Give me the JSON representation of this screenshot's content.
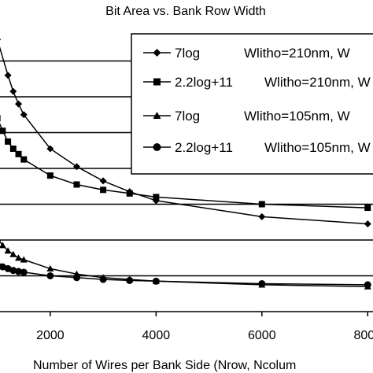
{
  "chart_data": {
    "type": "line",
    "title": "Bit Area vs. Bank Row Width",
    "xlabel": "Number of Wires per Bank Side (Nrow, Ncolum",
    "ylabel": "",
    "xlim": [
      1050,
      8100
    ],
    "ylim": [
      0,
      8
    ],
    "x_ticks": [
      2000,
      4000,
      6000,
      8000
    ],
    "x_tick_labels": [
      "2000",
      "4000",
      "6000",
      "8000"
    ],
    "y_gridlines": [
      1,
      2,
      3,
      4,
      5,
      6,
      7
    ],
    "y_grid": true,
    "x_grid": false,
    "legend_position": "top-right",
    "series": [
      {
        "name": "7log",
        "wlitho": "Wlitho=210nm, W",
        "marker": "diamond",
        "color": "#000000",
        "x": [
          1000,
          1200,
          1300,
          1400,
          1500,
          2000,
          2500,
          3000,
          3500,
          4000,
          6000,
          8000
        ],
        "y": [
          7.6,
          6.6,
          6.15,
          5.8,
          5.5,
          4.55,
          4.05,
          3.65,
          3.35,
          3.1,
          2.65,
          2.45
        ]
      },
      {
        "name": "2.2log+11",
        "wlitho": "Wlitho=210nm, W",
        "marker": "square",
        "color": "#000000",
        "x": [
          1000,
          1100,
          1200,
          1300,
          1400,
          1500,
          2000,
          2500,
          3000,
          3500,
          4000,
          6000,
          8000
        ],
        "y": [
          5.4,
          5.05,
          4.75,
          4.55,
          4.4,
          4.25,
          3.8,
          3.55,
          3.4,
          3.3,
          3.2,
          3.0,
          2.9
        ]
      },
      {
        "name": "7log",
        "wlitho": "Wlitho=105nm, W",
        "marker": "triangle",
        "color": "#000000",
        "x": [
          1000,
          1100,
          1200,
          1300,
          1400,
          1500,
          2000,
          2500,
          3000,
          3500,
          4000,
          6000,
          8000
        ],
        "y": [
          2.05,
          1.85,
          1.7,
          1.6,
          1.5,
          1.45,
          1.2,
          1.05,
          0.95,
          0.9,
          0.85,
          0.75,
          0.7
        ]
      },
      {
        "name": "2.2log+11",
        "wlitho": "Wlitho=105nm, W",
        "marker": "circle",
        "color": "#000000",
        "x": [
          1000,
          1100,
          1200,
          1300,
          1400,
          1500,
          2000,
          2500,
          3000,
          3500,
          4000,
          6000,
          8000
        ],
        "y": [
          1.3,
          1.25,
          1.2,
          1.15,
          1.12,
          1.1,
          1.0,
          0.95,
          0.9,
          0.87,
          0.85,
          0.78,
          0.75
        ]
      }
    ]
  }
}
